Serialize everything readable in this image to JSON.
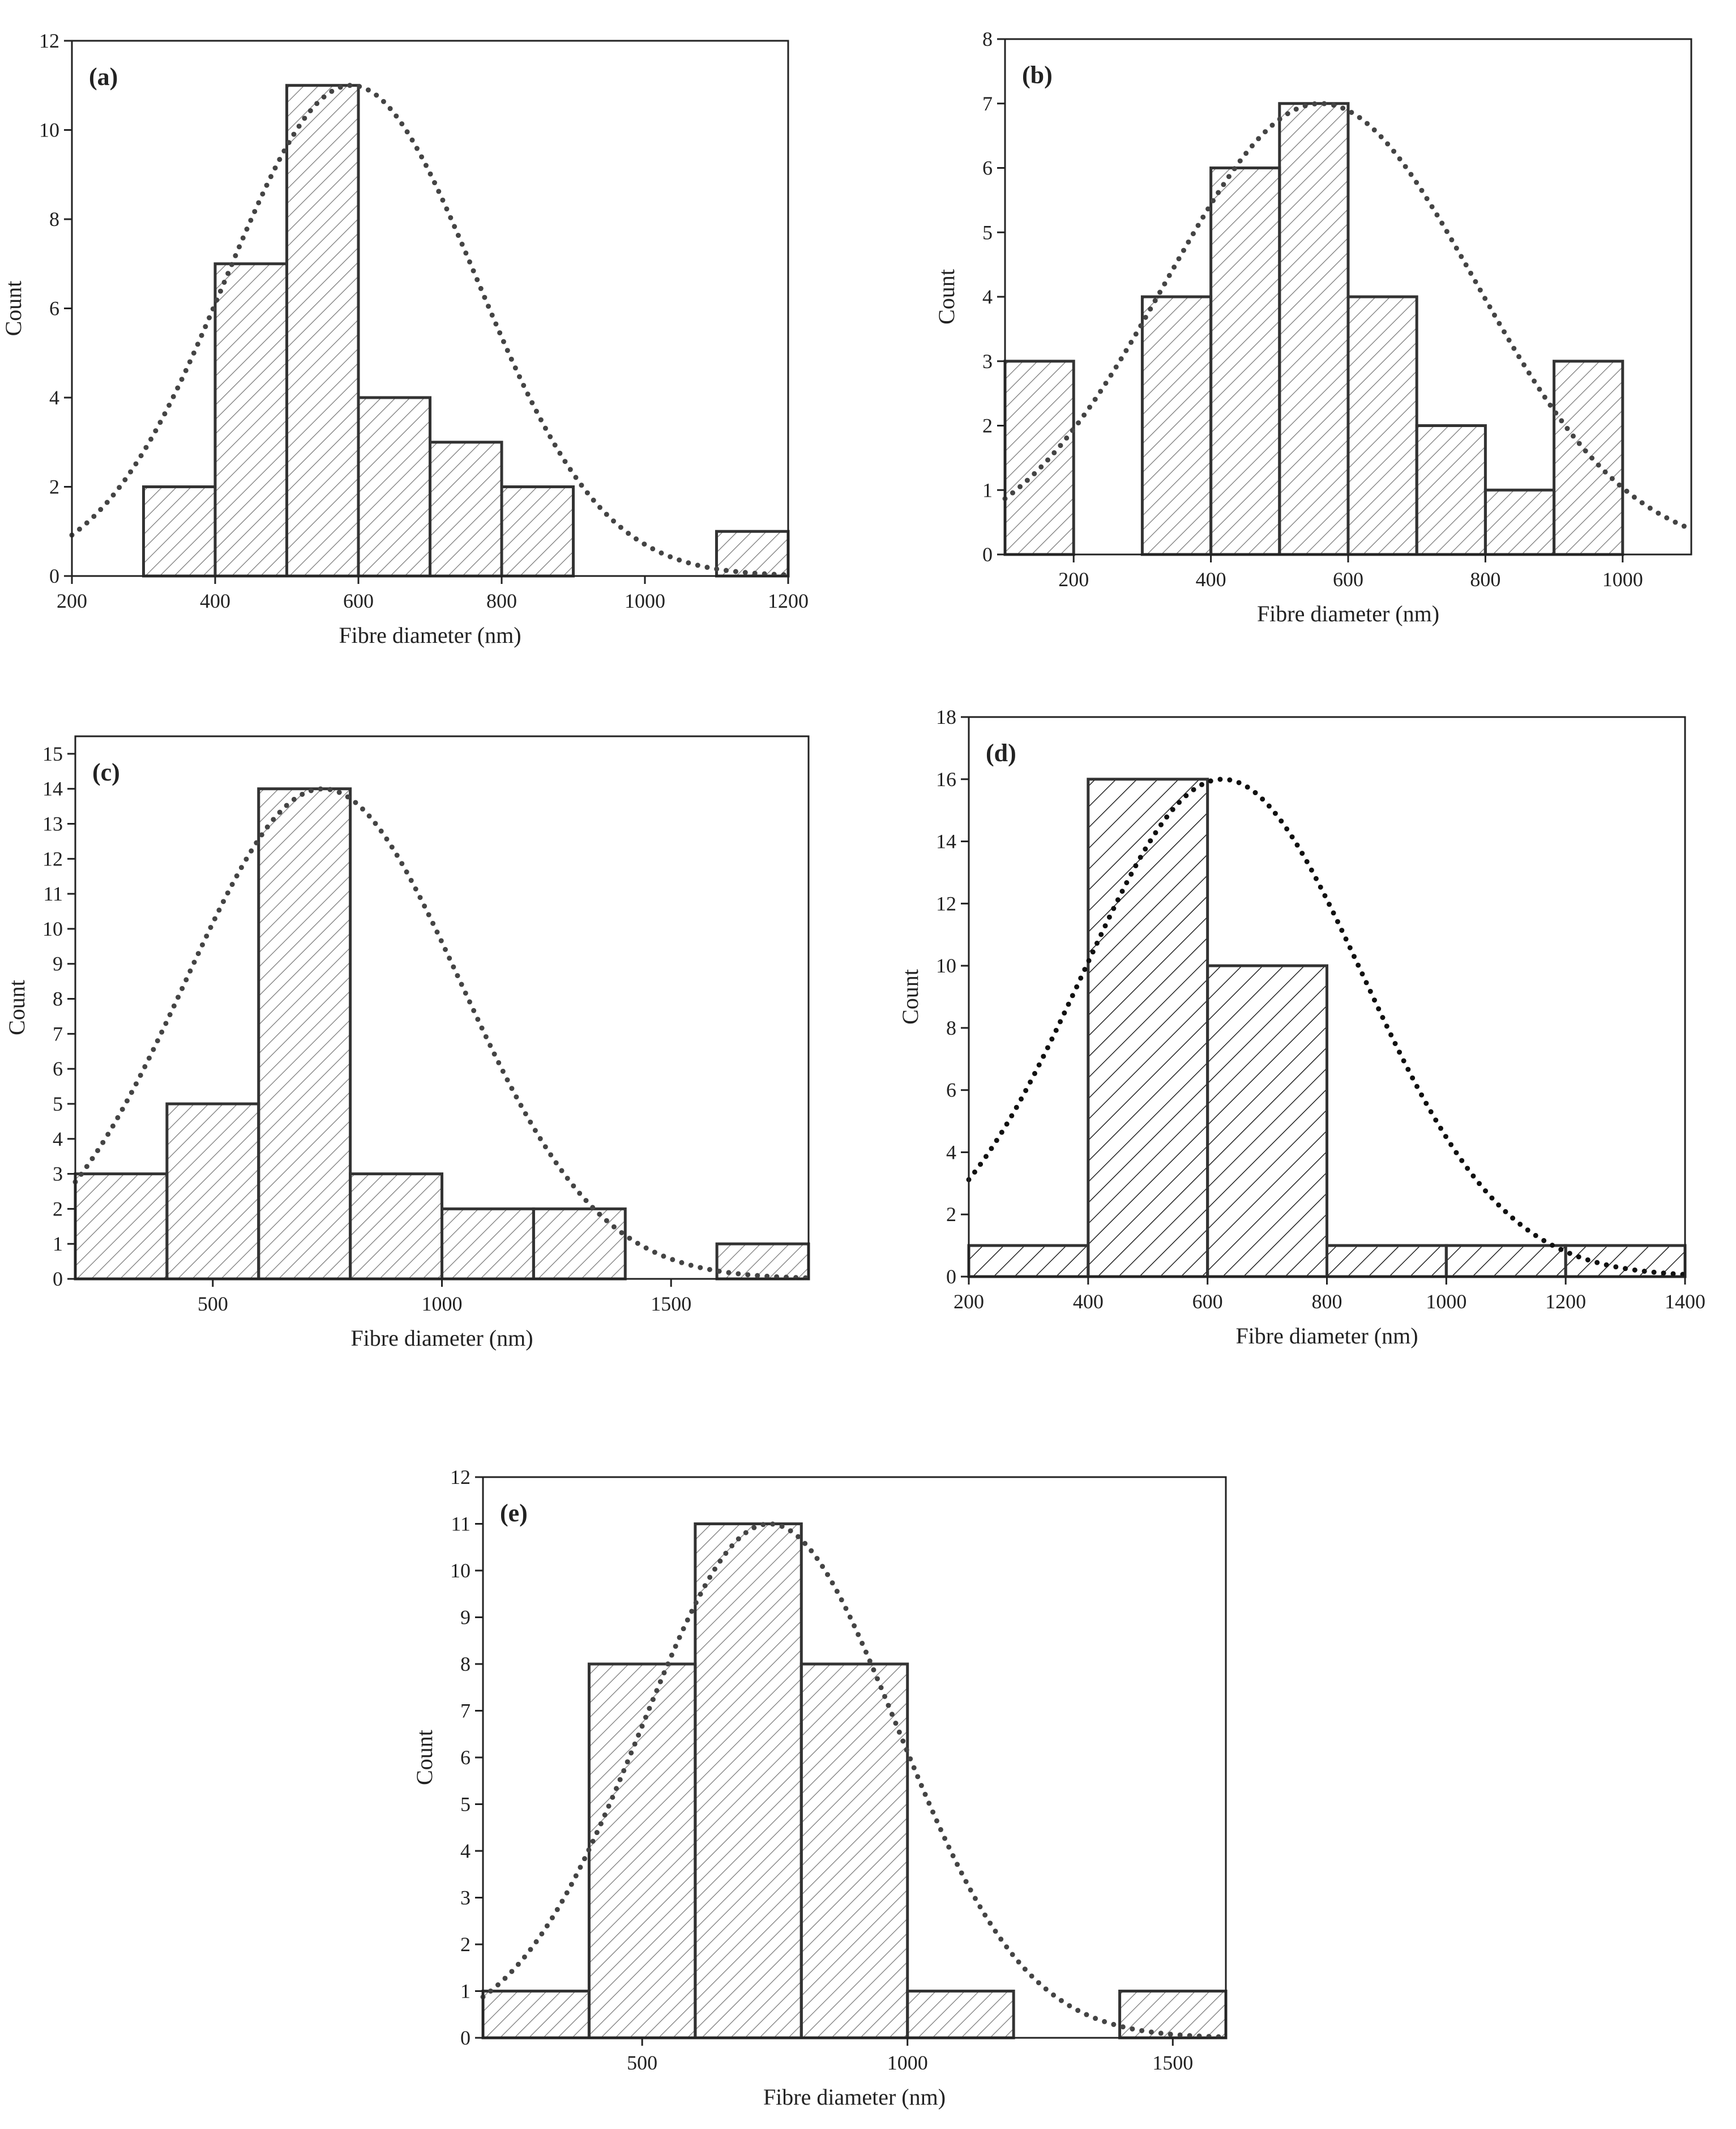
{
  "chart_data": [
    {
      "type": "bar",
      "panel": "(a)",
      "xlabel": "Fibre diameter (nm)",
      "ylabel": "Count",
      "xlim": [
        200,
        1200
      ],
      "ylim": [
        0,
        12
      ],
      "xticks": [
        200,
        400,
        600,
        800,
        1000,
        1200
      ],
      "yticks": [
        0,
        2,
        4,
        6,
        8,
        10,
        12
      ],
      "bins": [
        {
          "start": 300,
          "end": 400,
          "count": 2
        },
        {
          "start": 400,
          "end": 500,
          "count": 7
        },
        {
          "start": 500,
          "end": 600,
          "count": 11
        },
        {
          "start": 600,
          "end": 700,
          "count": 4
        },
        {
          "start": 700,
          "end": 800,
          "count": 3
        },
        {
          "start": 800,
          "end": 900,
          "count": 2
        },
        {
          "start": 1100,
          "end": 1200,
          "count": 1
        }
      ],
      "fit": {
        "type": "normal",
        "mean": 590,
        "sd": 175,
        "peak": 11
      }
    },
    {
      "type": "bar",
      "panel": "(b)",
      "xlabel": "Fibre diameter (nm)",
      "ylabel": "Count",
      "xlim": [
        100,
        1100
      ],
      "ylim": [
        0,
        8
      ],
      "xticks": [
        200,
        400,
        600,
        800,
        1000
      ],
      "yticks": [
        0,
        1,
        2,
        3,
        4,
        5,
        6,
        7,
        8
      ],
      "bins": [
        {
          "start": 100,
          "end": 200,
          "count": 3
        },
        {
          "start": 300,
          "end": 400,
          "count": 4
        },
        {
          "start": 400,
          "end": 500,
          "count": 6
        },
        {
          "start": 500,
          "end": 600,
          "count": 7
        },
        {
          "start": 600,
          "end": 700,
          "count": 4
        },
        {
          "start": 700,
          "end": 800,
          "count": 2
        },
        {
          "start": 800,
          "end": 900,
          "count": 1
        },
        {
          "start": 900,
          "end": 1000,
          "count": 3
        }
      ],
      "fit": {
        "type": "normal",
        "mean": 560,
        "sd": 225,
        "peak": 7
      }
    },
    {
      "type": "bar",
      "panel": "(c)",
      "xlabel": "Fibre diameter (nm)",
      "ylabel": "Count",
      "xlim": [
        200,
        1800
      ],
      "ylim": [
        0,
        15.5
      ],
      "xticks": [
        500,
        1000,
        1500
      ],
      "yticks": [
        0,
        1,
        2,
        3,
        4,
        5,
        6,
        7,
        8,
        9,
        10,
        11,
        12,
        13,
        14,
        15
      ],
      "bins": [
        {
          "start": 200,
          "end": 400,
          "count": 3
        },
        {
          "start": 400,
          "end": 600,
          "count": 5
        },
        {
          "start": 600,
          "end": 800,
          "count": 14
        },
        {
          "start": 800,
          "end": 1000,
          "count": 3
        },
        {
          "start": 1000,
          "end": 1200,
          "count": 2
        },
        {
          "start": 1200,
          "end": 1400,
          "count": 2
        },
        {
          "start": 1600,
          "end": 1800,
          "count": 1
        }
      ],
      "fit": {
        "type": "normal",
        "mean": 740,
        "sd": 300,
        "peak": 14
      }
    },
    {
      "type": "bar",
      "panel": "(d)",
      "xlabel": "Fibre diameter (nm)",
      "ylabel": "Count",
      "xlim": [
        200,
        1400
      ],
      "ylim": [
        0,
        18
      ],
      "xticks": [
        200,
        400,
        600,
        800,
        1000,
        1200,
        1400
      ],
      "yticks": [
        0,
        2,
        4,
        6,
        8,
        10,
        12,
        14,
        16,
        18
      ],
      "bins": [
        {
          "start": 200,
          "end": 400,
          "count": 1
        },
        {
          "start": 400,
          "end": 600,
          "count": 16
        },
        {
          "start": 600,
          "end": 800,
          "count": 10
        },
        {
          "start": 800,
          "end": 1000,
          "count": 1
        },
        {
          "start": 1000,
          "end": 1200,
          "count": 1
        },
        {
          "start": 1200,
          "end": 1400,
          "count": 1
        }
      ],
      "fit": {
        "type": "normal",
        "mean": 625,
        "sd": 235,
        "peak": 16
      }
    },
    {
      "type": "bar",
      "panel": "(e)",
      "xlabel": "Fibre diameter (nm)",
      "ylabel": "Count",
      "xlim": [
        200,
        1600
      ],
      "ylim": [
        0,
        12
      ],
      "xticks": [
        500,
        1000,
        1500
      ],
      "yticks": [
        0,
        1,
        2,
        3,
        4,
        5,
        6,
        7,
        8,
        9,
        10,
        11,
        12
      ],
      "bins": [
        {
          "start": 200,
          "end": 400,
          "count": 1
        },
        {
          "start": 400,
          "end": 600,
          "count": 8
        },
        {
          "start": 600,
          "end": 800,
          "count": 11
        },
        {
          "start": 800,
          "end": 1000,
          "count": 8
        },
        {
          "start": 1000,
          "end": 1200,
          "count": 1
        },
        {
          "start": 1400,
          "end": 1600,
          "count": 1
        }
      ],
      "fit": {
        "type": "normal",
        "mean": 740,
        "sd": 240,
        "peak": 11
      }
    }
  ],
  "style": {
    "bar_stroke": "#333333",
    "hatch_color": "#777777",
    "fit_color": "#444444",
    "axis_color": "#222222"
  }
}
